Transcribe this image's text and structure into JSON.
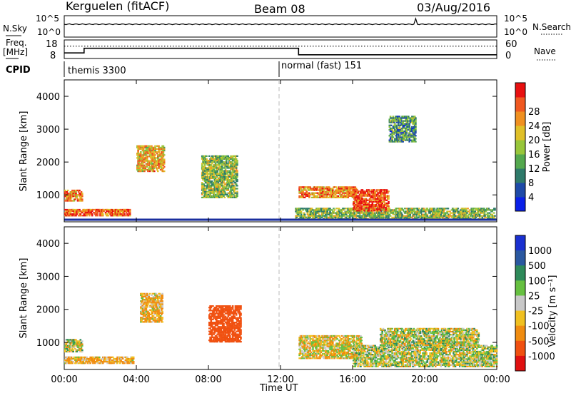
{
  "header": {
    "station": "Kerguelen (fitACF)",
    "beam": "Beam 08",
    "date": "03/Aug/2016"
  },
  "top_panel": {
    "nsky_label": "N.Sky",
    "nsearch_label": "N.Search",
    "left_ticks": [
      "10^5",
      "10^0"
    ],
    "right_ticks": [
      "10^5",
      "10^0"
    ],
    "freq_label_line1": "Freq.",
    "freq_label_line2": "[MHz]",
    "freq_ticks": [
      "18",
      "8"
    ],
    "nave_label": "Nave",
    "nave_ticks": [
      "60",
      "0"
    ],
    "cpid_label": "CPID",
    "cpid_left": "themis 3300",
    "cpid_right": "normal (fast) 151"
  },
  "axes": {
    "ylabel": "Slant Range [km]",
    "xlabel": "Time UT",
    "y_ticks": [
      "1000",
      "2000",
      "3000",
      "4000"
    ],
    "x_ticks": [
      "00:00",
      "04:00",
      "08:00",
      "12:00",
      "16:00",
      "20:00",
      "00:00"
    ]
  },
  "power_bar": {
    "label": "Power [dB]",
    "ticks": [
      "4",
      "8",
      "12",
      "16",
      "20",
      "24",
      "28"
    ],
    "colors": [
      "#0a20e8",
      "#1e4aa8",
      "#2e7a6a",
      "#54a84e",
      "#98c63a",
      "#e0c028",
      "#f09020",
      "#f05820",
      "#e81010"
    ]
  },
  "velocity_bar": {
    "label": "Velocity [m s⁻¹]",
    "ticks": [
      "1000",
      "500",
      "100",
      "25",
      "-25",
      "-100",
      "-500",
      "-1000"
    ],
    "colors": [
      "#1a30d0",
      "#2a58a0",
      "#2e8a5a",
      "#66c040",
      "#c8c8c8",
      "#f0c020",
      "#f08c10",
      "#f05010",
      "#e01010"
    ]
  },
  "chart_data": {
    "type": "heatmap",
    "title": "Kerguelen (fitACF)",
    "xlabel": "Time UT",
    "ylabel": "Slant Range [km]",
    "xlim": [
      "00:00",
      "24:00"
    ],
    "ylim": [
      180,
      4500
    ],
    "series": [
      {
        "name": "Power [dB]",
        "scale": [
          0,
          30
        ],
        "blobs": [
          {
            "t": [
              0.0,
              3.6
            ],
            "r": [
              350,
              550
            ],
            "value": 24
          },
          {
            "t": [
              0.0,
              1.0
            ],
            "r": [
              800,
              1150
            ],
            "value": 22
          },
          {
            "t": [
              4.0,
              5.5
            ],
            "r": [
              1700,
              2500
            ],
            "value": 20
          },
          {
            "t": [
              7.6,
              9.6
            ],
            "r": [
              900,
              2200
            ],
            "value": 14
          },
          {
            "t": [
              12.8,
              23.9
            ],
            "r": [
              250,
              600
            ],
            "value": 14
          },
          {
            "t": [
              13.0,
              16.2
            ],
            "r": [
              900,
              1250
            ],
            "value": 22
          },
          {
            "t": [
              16.0,
              18.0
            ],
            "r": [
              500,
              1150
            ],
            "value": 26
          },
          {
            "t": [
              18.0,
              19.5
            ],
            "r": [
              2600,
              3400
            ],
            "value": 10
          }
        ]
      },
      {
        "name": "Velocity [m s⁻¹]",
        "scale": [
          -1000,
          1000
        ],
        "blobs": [
          {
            "t": [
              0.0,
              1.0
            ],
            "r": [
              700,
              1100
            ],
            "value": 0
          },
          {
            "t": [
              0.0,
              3.8
            ],
            "r": [
              350,
              550
            ],
            "value": -100
          },
          {
            "t": [
              4.2,
              5.4
            ],
            "r": [
              1600,
              2500
            ],
            "value": -100
          },
          {
            "t": [
              8.0,
              9.8
            ],
            "r": [
              1000,
              2100
            ],
            "value": -800
          },
          {
            "t": [
              13.0,
              16.5
            ],
            "r": [
              500,
              1200
            ],
            "value": -50
          },
          {
            "t": [
              16.0,
              24.0
            ],
            "r": [
              250,
              900
            ],
            "value": 10
          },
          {
            "t": [
              17.5,
              23.0
            ],
            "r": [
              900,
              1400
            ],
            "value": 0
          }
        ]
      }
    ],
    "noise_sky": "~10^3 constant with spike near 19:30",
    "frequency_MHz": [
      {
        "t": [
          0,
          1.1
        ],
        "value": 11
      },
      {
        "t": [
          1.1,
          13
        ],
        "value": 13.5
      },
      {
        "t": [
          13,
          24
        ],
        "value": 10
      }
    ],
    "nave": [
      {
        "t": [
          0,
          13
        ],
        "value": 40
      },
      {
        "t": [
          13,
          24
        ],
        "value": 40
      }
    ],
    "cpid": [
      {
        "t": [
          0,
          12
        ],
        "value": "themis 3300"
      },
      {
        "t": [
          12,
          24
        ],
        "value": "normal (fast) 151"
      }
    ]
  }
}
